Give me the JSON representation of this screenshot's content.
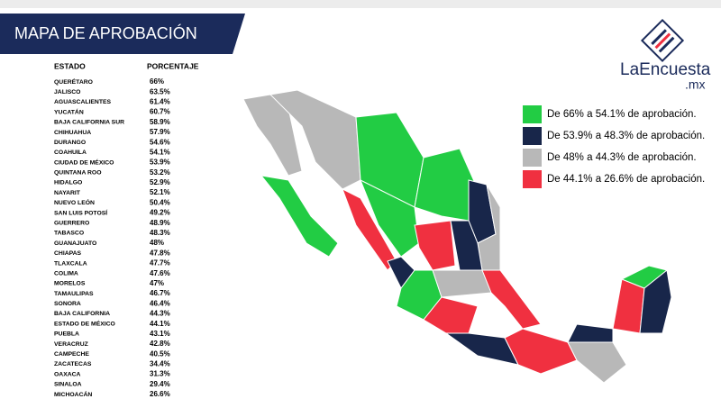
{
  "header": {
    "title": "MAPA DE APROBACIÓN"
  },
  "logo": {
    "name": "LaEncuesta",
    "suffix": ".mx"
  },
  "table": {
    "columns": [
      "ESTADO",
      "PORCENTAJE"
    ],
    "rows": [
      [
        "QUERÉTARO",
        "66%"
      ],
      [
        "JALISCO",
        "63.5%"
      ],
      [
        "AGUASCALIENTES",
        "61.4%"
      ],
      [
        "YUCATÁN",
        "60.7%"
      ],
      [
        "BAJA CALIFORNIA SUR",
        "58.9%"
      ],
      [
        "CHIHUAHUA",
        "57.9%"
      ],
      [
        "DURANGO",
        "54.6%"
      ],
      [
        "COAHUILA",
        "54.1%"
      ],
      [
        "CIUDAD DE MÉXICO",
        "53.9%"
      ],
      [
        "QUINTANA ROO",
        "53.2%"
      ],
      [
        "HIDALGO",
        "52.9%"
      ],
      [
        "NAYARIT",
        "52.1%"
      ],
      [
        "NUEVO LEÓN",
        "50.4%"
      ],
      [
        "SAN LUIS POTOSÍ",
        "49.2%"
      ],
      [
        "GUERRERO",
        "48.9%"
      ],
      [
        "TABASCO",
        "48.3%"
      ],
      [
        "GUANAJUATO",
        "48%"
      ],
      [
        "CHIAPAS",
        "47.8%"
      ],
      [
        "TLAXCALA",
        "47.7%"
      ],
      [
        "COLIMA",
        "47.6%"
      ],
      [
        "MORELOS",
        "47%"
      ],
      [
        "TAMAULIPAS",
        "46.7%"
      ],
      [
        "SONORA",
        "46.4%"
      ],
      [
        "BAJA CALIFORNIA",
        "44.3%"
      ],
      [
        "ESTADO DE MÉXICO",
        "44.1%"
      ],
      [
        "PUEBLA",
        "43.1%"
      ],
      [
        "VERACRUZ",
        "42.8%"
      ],
      [
        "CAMPECHE",
        "40.5%"
      ],
      [
        "ZACATECAS",
        "34.4%"
      ],
      [
        "OAXACA",
        "31.3%"
      ],
      [
        "SINALOA",
        "29.4%"
      ],
      [
        "MICHOACÁN",
        "26.6%"
      ]
    ]
  },
  "legend": {
    "items": [
      {
        "label": "De 66% a 54.1% de aprobación.",
        "color": "#22cc44"
      },
      {
        "label": "De 53.9% a 48.3% de aprobación.",
        "color": "#18264a"
      },
      {
        "label": "De 48% a 44.3% de aprobación.",
        "color": "#b8b8b8"
      },
      {
        "label": "De 44.1% a 26.6% de aprobación.",
        "color": "#f03040"
      }
    ]
  }
}
